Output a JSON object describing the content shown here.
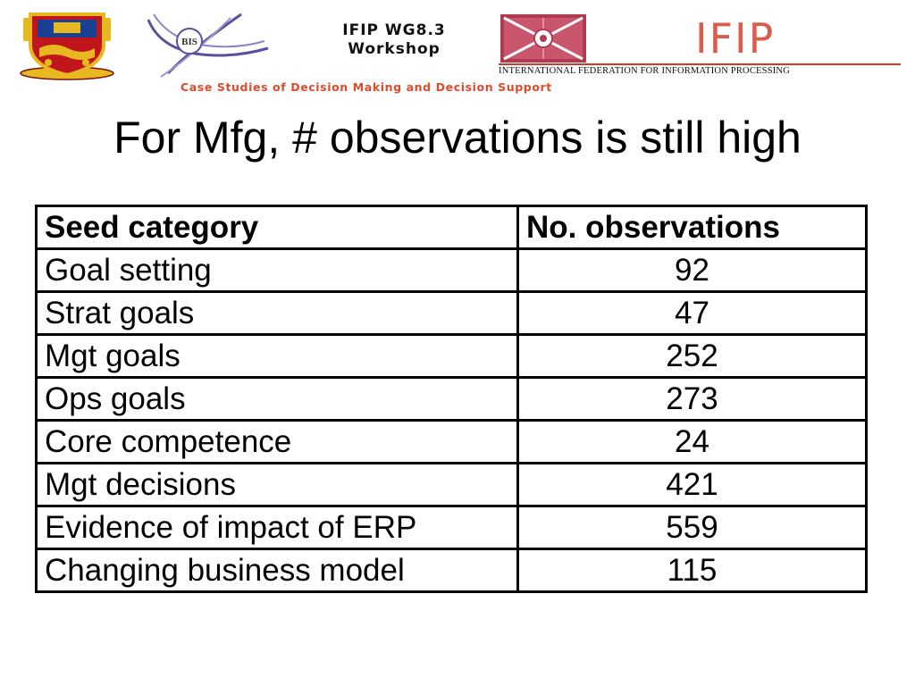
{
  "header": {
    "workshop_line1": "IFIP WG8.3",
    "workshop_line2": "Workshop",
    "bis_logo_text": "BIS",
    "ifip_logo_word": "IFIP",
    "ifip_full_name": "INTERNATIONAL FEDERATION FOR INFORMATION PROCESSING",
    "tagline": "Case Studies of Decision Making and Decision Support"
  },
  "title": "For Mfg, # observations is still high",
  "table": {
    "headers": [
      "Seed category",
      "No. observations"
    ],
    "rows": [
      [
        "Goal setting",
        "92"
      ],
      [
        "Strat goals",
        "47"
      ],
      [
        "Mgt goals",
        "252"
      ],
      [
        "Ops goals",
        "273"
      ],
      [
        "Core competence",
        "24"
      ],
      [
        "Mgt decisions",
        "421"
      ],
      [
        "Evidence of impact of ERP",
        "559"
      ],
      [
        "Changing business model",
        "115"
      ]
    ]
  },
  "colors": {
    "ifip_red": "#d95f4c",
    "tagline_orange": "#e04a2a",
    "bis_purple": "#5a4f9c",
    "ifip_box": "#b03a52"
  }
}
